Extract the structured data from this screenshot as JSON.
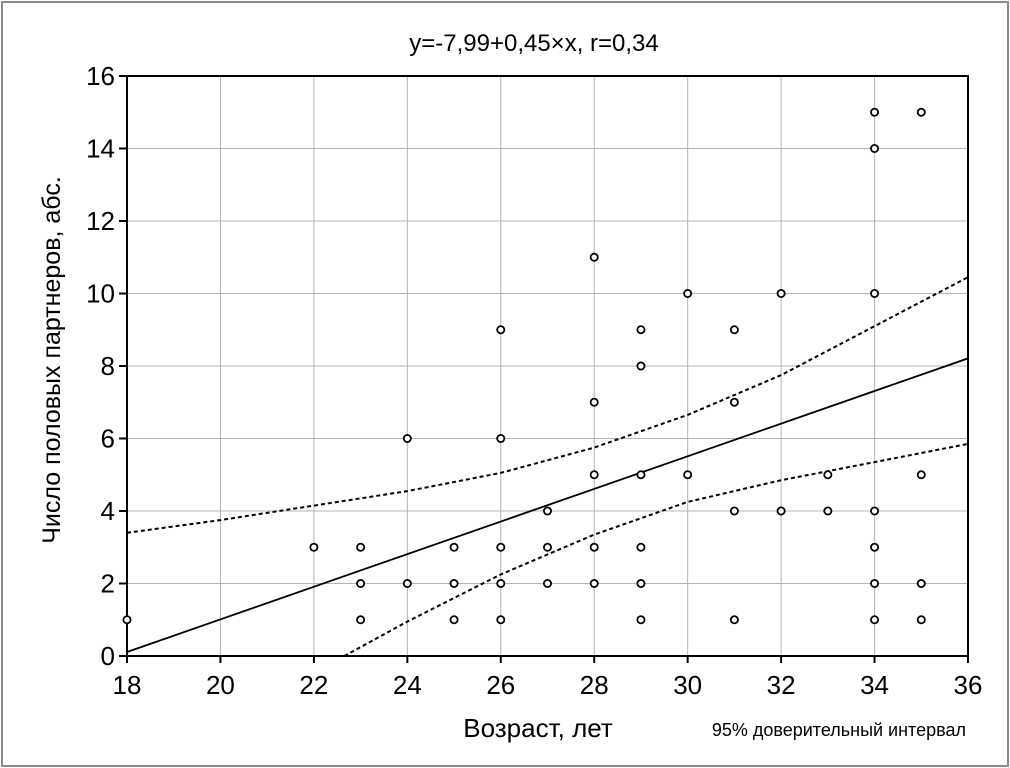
{
  "chart_data": {
    "type": "scatter",
    "title": "y=-7,99+0,45×x, r=0,34",
    "xlabel": "Возраст, лет",
    "ylabel": "Число половых партнеров, абс.",
    "footnote": "95%  доверительный интервал",
    "xlim": [
      18,
      36
    ],
    "ylim": [
      0,
      16
    ],
    "x_ticks": [
      "18",
      "20",
      "22",
      "24",
      "26",
      "28",
      "30",
      "32",
      "34",
      "36"
    ],
    "y_ticks": [
      "0",
      "2",
      "4",
      "6",
      "8",
      "10",
      "12",
      "14",
      "16"
    ],
    "grid": true,
    "points": [
      {
        "x": 18,
        "y": 1
      },
      {
        "x": 22,
        "y": 3
      },
      {
        "x": 23,
        "y": 3
      },
      {
        "x": 23,
        "y": 2
      },
      {
        "x": 23,
        "y": 1
      },
      {
        "x": 24,
        "y": 6
      },
      {
        "x": 24,
        "y": 2
      },
      {
        "x": 25,
        "y": 3
      },
      {
        "x": 25,
        "y": 2
      },
      {
        "x": 25,
        "y": 1
      },
      {
        "x": 26,
        "y": 9
      },
      {
        "x": 26,
        "y": 6
      },
      {
        "x": 26,
        "y": 3
      },
      {
        "x": 26,
        "y": 2
      },
      {
        "x": 26,
        "y": 1
      },
      {
        "x": 27,
        "y": 4
      },
      {
        "x": 27,
        "y": 3
      },
      {
        "x": 27,
        "y": 2
      },
      {
        "x": 28,
        "y": 11
      },
      {
        "x": 28,
        "y": 7
      },
      {
        "x": 28,
        "y": 5
      },
      {
        "x": 28,
        "y": 3
      },
      {
        "x": 28,
        "y": 2
      },
      {
        "x": 29,
        "y": 9
      },
      {
        "x": 29,
        "y": 8
      },
      {
        "x": 29,
        "y": 5
      },
      {
        "x": 29,
        "y": 3
      },
      {
        "x": 29,
        "y": 2
      },
      {
        "x": 29,
        "y": 1
      },
      {
        "x": 30,
        "y": 10
      },
      {
        "x": 30,
        "y": 5
      },
      {
        "x": 31,
        "y": 9
      },
      {
        "x": 31,
        "y": 7
      },
      {
        "x": 31,
        "y": 4
      },
      {
        "x": 31,
        "y": 1
      },
      {
        "x": 32,
        "y": 10
      },
      {
        "x": 32,
        "y": 4
      },
      {
        "x": 33,
        "y": 5
      },
      {
        "x": 33,
        "y": 4
      },
      {
        "x": 34,
        "y": 15
      },
      {
        "x": 34,
        "y": 14
      },
      {
        "x": 34,
        "y": 10
      },
      {
        "x": 34,
        "y": 4
      },
      {
        "x": 34,
        "y": 3
      },
      {
        "x": 34,
        "y": 2
      },
      {
        "x": 34,
        "y": 1
      },
      {
        "x": 35,
        "y": 15
      },
      {
        "x": 35,
        "y": 5
      },
      {
        "x": 35,
        "y": 2
      },
      {
        "x": 35,
        "y": 1
      }
    ],
    "regression": {
      "intercept": -7.99,
      "slope": 0.45,
      "style": "solid"
    },
    "confidence_upper": {
      "style": "dashed",
      "points": [
        [
          18,
          3.4
        ],
        [
          20,
          3.75
        ],
        [
          22,
          4.15
        ],
        [
          24,
          4.55
        ],
        [
          26,
          5.05
        ],
        [
          28,
          5.75
        ],
        [
          30,
          6.65
        ],
        [
          32,
          7.75
        ],
        [
          34,
          9.1
        ],
        [
          36,
          10.45
        ]
      ]
    },
    "confidence_lower": {
      "style": "dashed",
      "points": [
        [
          22.65,
          0
        ],
        [
          24,
          0.95
        ],
        [
          26,
          2.25
        ],
        [
          28,
          3.35
        ],
        [
          30,
          4.25
        ],
        [
          32,
          4.85
        ],
        [
          34,
          5.35
        ],
        [
          36,
          5.85
        ]
      ]
    }
  }
}
